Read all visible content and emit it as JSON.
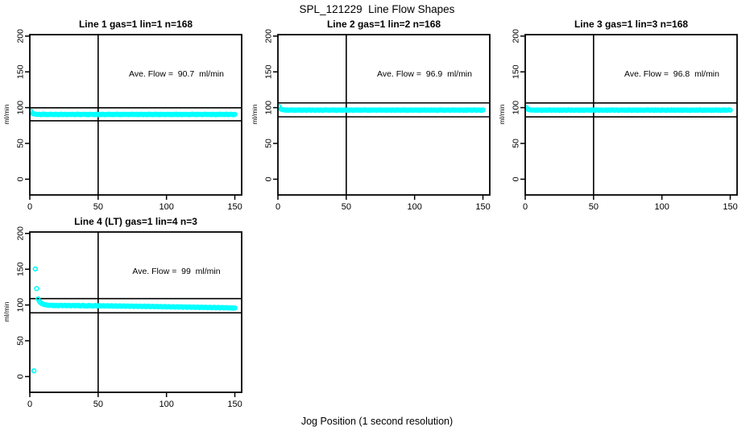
{
  "page_title": "SPL_121229  Line Flow Shapes",
  "xlabel": "Jog Position (1 second resolution)",
  "colors": {
    "point": "#00ffff",
    "axis": "#000000",
    "background": "#ffffff"
  },
  "chart_data": [
    {
      "type": "scatter",
      "title": "Line 1 gas=1 lin=1 n=168",
      "annotation": "Ave. Flow =  90.7  ml/min",
      "ave_flow": 90.7,
      "gas": 1,
      "lin": 1,
      "n": 168,
      "ylabel": "ml/min",
      "xlim": [
        0,
        155
      ],
      "ylim": [
        -22,
        202
      ],
      "xticks": [
        0,
        50,
        100,
        150
      ],
      "yticks": [
        0,
        50,
        100,
        150,
        200
      ],
      "vline_x": 50,
      "hlines": [
        99.8,
        81.6
      ],
      "x_start": 1,
      "x_step": 1,
      "y": [
        94.6,
        92.1,
        91.3,
        90.9,
        90.7,
        90.4,
        90.8,
        90.2,
        90.6,
        91.0,
        90.3,
        90.7,
        90.1,
        90.5,
        90.9,
        90.4,
        90.6,
        90.2,
        90.8,
        90.5,
        90.1,
        90.6,
        90.9,
        90.3,
        90.5,
        90.8,
        90.2,
        90.4,
        90.7,
        90.3,
        90.8,
        90.4,
        90.1,
        90.6,
        90.9,
        90.5,
        90.2,
        90.7,
        90.4,
        90.8,
        90.3,
        90.6,
        90.1,
        90.8,
        90.4,
        90.7,
        90.2,
        90.5,
        90.9,
        90.3,
        90.6,
        90.2,
        90.8,
        90.5,
        90.1,
        90.7,
        90.4,
        90.9,
        90.3,
        90.6,
        90.2,
        90.7,
        90.5,
        90.9,
        90.4,
        90.1,
        90.6,
        90.3,
        90.8,
        90.5,
        90.7,
        90.2,
        90.6,
        90.4,
        90.9,
        90.3,
        90.5,
        90.8,
        90.1,
        90.6,
        90.4,
        90.8,
        90.2,
        90.7,
        90.5,
        90.1,
        90.9,
        90.4,
        90.6,
        90.2,
        90.5,
        90.9,
        90.3,
        90.6,
        90.1,
        90.8,
        90.4,
        90.7,
        90.2,
        90.5,
        90.8,
        90.3,
        90.7,
        90.1,
        90.6,
        90.4,
        90.9,
        90.2,
        90.5,
        90.7,
        90.2,
        90.6,
        90.4,
        90.8,
        90.3,
        90.5,
        90.1,
        90.7,
        90.9,
        90.4,
        90.6,
        90.1,
        90.8,
        90.4,
        90.7,
        90.2,
        90.5,
        90.9,
        90.3,
        90.6,
        90.4,
        90.7,
        90.2,
        90.8,
        90.5,
        90.1,
        90.6,
        90.3,
        90.9,
        90.5,
        90.7,
        90.3,
        90.6,
        90.9,
        90.2,
        90.5,
        90.8,
        90.4,
        90.1,
        90.6
      ]
    },
    {
      "type": "scatter",
      "title": "Line 2 gas=1 lin=2 n=168",
      "annotation": "Ave. Flow =  96.9  ml/min",
      "ave_flow": 96.9,
      "gas": 1,
      "lin": 2,
      "n": 168,
      "ylabel": "ml/min",
      "xlim": [
        0,
        155
      ],
      "ylim": [
        -22,
        202
      ],
      "xticks": [
        0,
        50,
        100,
        150
      ],
      "yticks": [
        0,
        50,
        100,
        150,
        200
      ],
      "vline_x": 50,
      "hlines": [
        106.6,
        87.2
      ],
      "x_start": 1,
      "x_step": 1,
      "y": [
        101.2,
        98.3,
        97.4,
        97.0,
        96.8,
        96.4,
        96.9,
        96.3,
        96.7,
        97.0,
        96.4,
        96.8,
        96.2,
        96.6,
        97.0,
        96.5,
        96.7,
        96.3,
        96.9,
        96.6,
        96.2,
        96.7,
        97.0,
        96.4,
        96.6,
        96.9,
        96.3,
        96.5,
        96.8,
        96.4,
        96.9,
        96.5,
        96.2,
        96.7,
        97.0,
        96.6,
        96.3,
        96.8,
        96.5,
        96.9,
        96.4,
        96.7,
        96.2,
        96.9,
        96.5,
        96.8,
        96.3,
        96.6,
        97.0,
        96.4,
        96.7,
        96.3,
        96.9,
        96.6,
        96.2,
        96.8,
        96.5,
        97.0,
        96.4,
        96.7,
        96.3,
        96.8,
        96.6,
        97.0,
        96.5,
        96.2,
        96.7,
        96.4,
        96.9,
        96.6,
        96.8,
        96.3,
        96.7,
        96.5,
        97.0,
        96.4,
        96.6,
        96.9,
        96.2,
        96.7,
        96.5,
        96.9,
        96.3,
        96.8,
        96.6,
        96.2,
        97.0,
        96.5,
        96.7,
        96.3,
        96.6,
        97.0,
        96.4,
        96.7,
        96.2,
        96.9,
        96.5,
        96.8,
        96.3,
        96.6,
        96.9,
        96.4,
        96.8,
        96.2,
        96.7,
        96.5,
        97.0,
        96.3,
        96.6,
        96.8,
        96.3,
        96.7,
        96.5,
        96.9,
        96.4,
        96.6,
        96.2,
        96.8,
        97.0,
        96.5,
        96.7,
        96.2,
        96.9,
        96.5,
        96.8,
        96.3,
        96.6,
        97.0,
        96.4,
        96.7,
        96.5,
        96.8,
        96.3,
        96.9,
        96.6,
        96.2,
        96.7,
        96.4,
        97.0,
        96.6,
        96.8,
        96.4,
        96.7,
        97.0,
        96.3,
        96.6,
        96.9,
        96.5,
        96.2,
        96.7
      ]
    },
    {
      "type": "scatter",
      "title": "Line 3 gas=1 lin=3 n=168",
      "annotation": "Ave. Flow =  96.8  ml/min",
      "ave_flow": 96.8,
      "gas": 1,
      "lin": 3,
      "n": 168,
      "ylabel": "ml/min",
      "xlim": [
        0,
        155
      ],
      "ylim": [
        -22,
        202
      ],
      "xticks": [
        0,
        50,
        100,
        150
      ],
      "yticks": [
        0,
        50,
        100,
        150,
        200
      ],
      "vline_x": 50,
      "hlines": [
        106.5,
        87.1
      ],
      "x_start": 1,
      "x_step": 1,
      "y": [
        99.8,
        97.6,
        97.1,
        96.8,
        96.5,
        96.9,
        96.4,
        96.7,
        96.3,
        96.8,
        96.6,
        96.2,
        96.9,
        96.5,
        96.8,
        96.3,
        96.7,
        97.0,
        96.4,
        96.6,
        96.9,
        96.3,
        96.6,
        96.8,
        96.2,
        96.7,
        96.4,
        96.9,
        96.6,
        96.2,
        96.7,
        97.0,
        96.4,
        96.8,
        96.5,
        96.2,
        96.9,
        96.6,
        96.3,
        96.7,
        96.4,
        96.8,
        96.2,
        96.6,
        96.9,
        96.5,
        96.7,
        96.3,
        97.0,
        96.6,
        96.2,
        96.7,
        96.9,
        96.4,
        96.6,
        96.8,
        96.3,
        96.5,
        96.9,
        96.2,
        96.8,
        96.4,
        96.7,
        97.0,
        96.3,
        96.6,
        96.9,
        96.2,
        96.5,
        96.8,
        96.5,
        96.9,
        96.3,
        96.7,
        96.4,
        97.0,
        96.6,
        96.2,
        96.8,
        96.5,
        96.7,
        96.2,
        96.8,
        96.4,
        96.9,
        96.5,
        96.3,
        96.8,
        96.6,
        97.0,
        96.3,
        96.6,
        96.9,
        96.2,
        96.7,
        96.4,
        96.8,
        96.5,
        96.2,
        96.7,
        96.9,
        96.5,
        96.2,
        96.8,
        96.6,
        96.3,
        97.0,
        96.4,
        96.7,
        96.3,
        96.6,
        96.8,
        96.4,
        96.7,
        96.2,
        96.9,
        96.5,
        96.8,
        96.3,
        96.6,
        96.2,
        96.9,
        96.6,
        96.3,
        96.8,
        96.4,
        96.7,
        97.0,
        96.5,
        96.2,
        96.8,
        96.3,
        96.7,
        96.5,
        96.9,
        96.2,
        96.6,
        96.4,
        96.9,
        96.7,
        96.4,
        96.7,
        96.2,
        96.9,
        96.5,
        96.8,
        96.3,
        96.6,
        97.0,
        96.5
      ]
    },
    {
      "type": "scatter",
      "title": "Line 4 (LT) gas=1 lin=4 n=3",
      "annotation": "Ave. Flow =  99  ml/min",
      "ave_flow": 99,
      "gas": 1,
      "lin": 4,
      "n": 3,
      "ylabel": "ml/min",
      "xlim": [
        0,
        155
      ],
      "ylim": [
        -22,
        202
      ],
      "xticks": [
        0,
        50,
        100,
        150
      ],
      "yticks": [
        0,
        50,
        100,
        150,
        200
      ],
      "vline_x": 50,
      "hlines": [
        108.9,
        89.1
      ],
      "x_start": 3,
      "x_step": 1,
      "y": [
        8.0,
        150.5,
        123.0,
        108.5,
        105.0,
        103.0,
        101.8,
        101.0,
        100.5,
        100.1,
        99.8,
        99.6,
        99.4,
        99.8,
        99.1,
        99.6,
        99.0,
        99.5,
        98.9,
        99.4,
        99.7,
        99.0,
        99.3,
        99.6,
        98.9,
        99.3,
        99.5,
        98.8,
        99.2,
        99.5,
        98.9,
        99.4,
        99.0,
        99.3,
        98.7,
        99.2,
        99.4,
        98.7,
        99.1,
        98.6,
        99.3,
        98.8,
        99.1,
        98.5,
        99.0,
        99.3,
        98.6,
        98.9,
        99.2,
        98.5,
        98.8,
        99.1,
        98.4,
        98.8,
        99.1,
        98.4,
        98.7,
        99.0,
        98.3,
        98.7,
        98.9,
        98.2,
        98.6,
        98.9,
        98.2,
        98.5,
        98.8,
        98.1,
        98.5,
        98.7,
        98.0,
        98.4,
        98.6,
        97.9,
        98.3,
        98.6,
        97.9,
        98.2,
        98.5,
        97.8,
        98.1,
        98.4,
        97.7,
        98.1,
        98.3,
        97.6,
        98.0,
        98.2,
        97.5,
        97.9,
        98.1,
        97.4,
        97.8,
        98.0,
        97.3,
        97.7,
        97.9,
        97.2,
        97.6,
        97.8,
        97.1,
        97.5,
        97.7,
        97.0,
        97.4,
        97.6,
        96.9,
        97.3,
        97.5,
        96.8,
        97.2,
        97.4,
        96.7,
        97.1,
        97.3,
        96.6,
        97.0,
        97.2,
        96.5,
        96.9,
        97.1,
        96.4,
        96.8,
        97.0,
        96.3,
        96.7,
        96.9,
        96.2,
        96.6,
        96.8,
        96.1,
        96.5,
        96.7,
        96.0,
        96.4,
        96.6,
        95.9,
        96.3,
        96.5,
        95.8,
        96.2,
        96.4,
        95.7,
        96.1,
        95.7,
        96.0,
        95.5,
        95.8
      ]
    }
  ]
}
